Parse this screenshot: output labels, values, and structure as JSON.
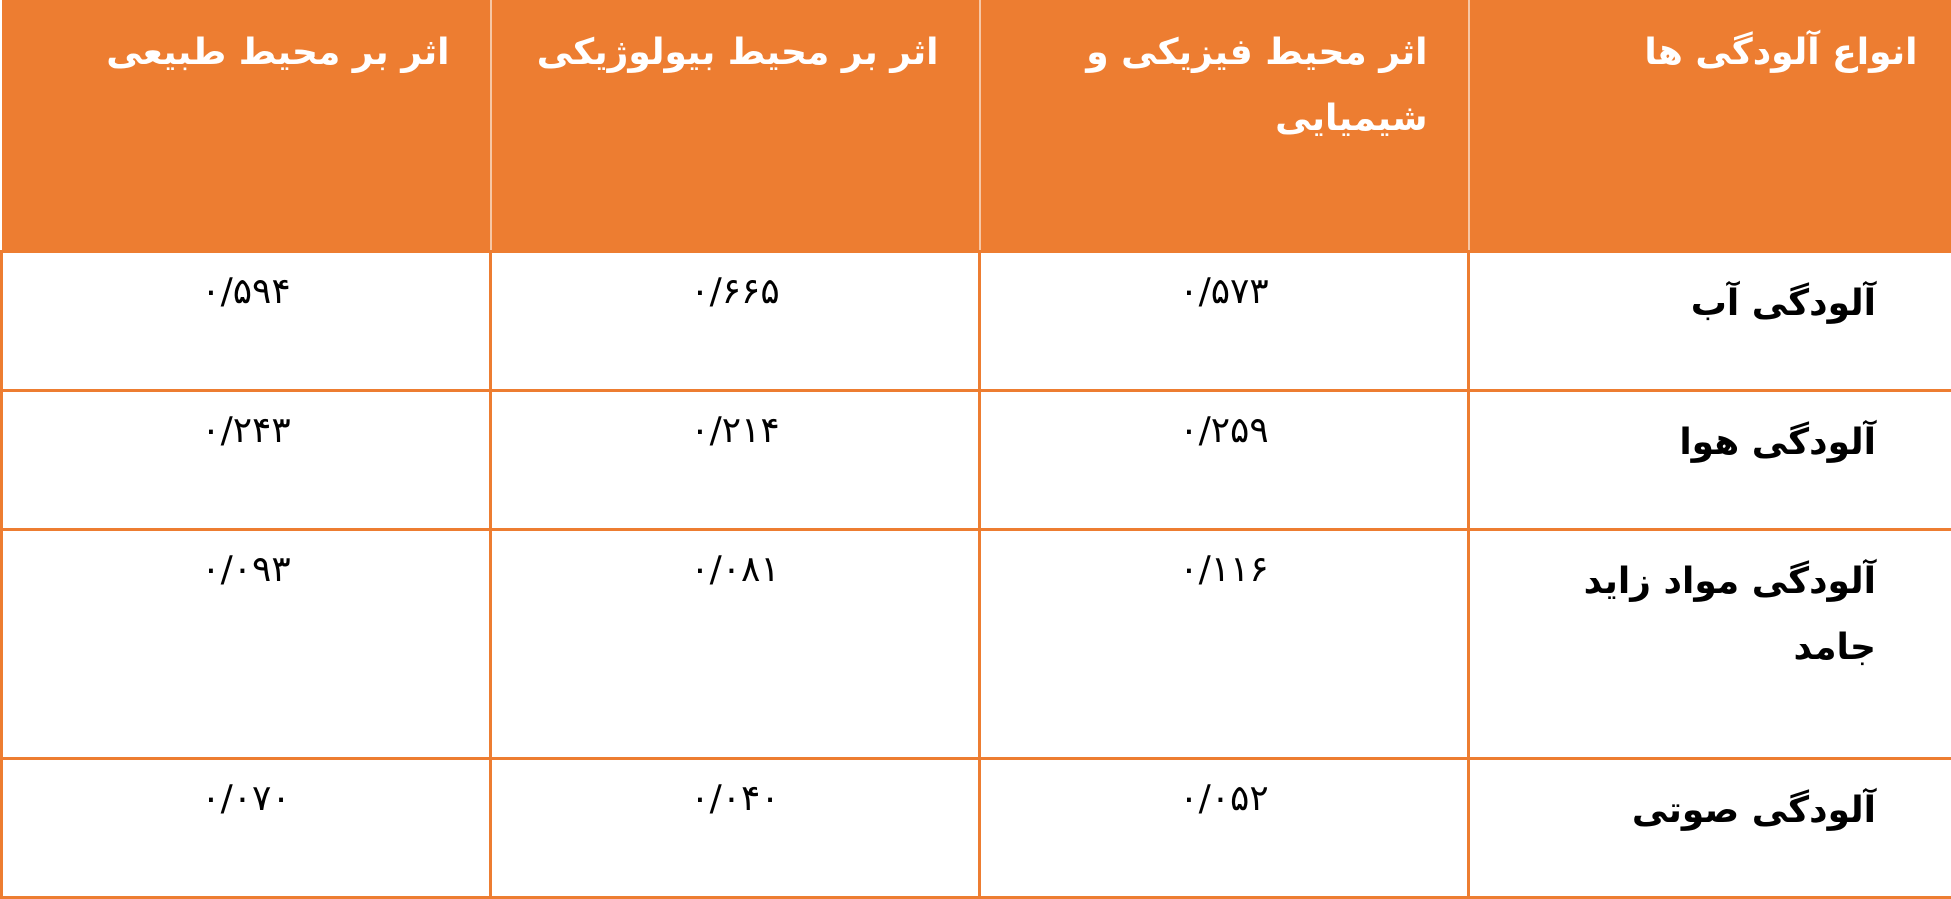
{
  "table": {
    "headers": [
      "انواع آلودگی ها",
      "اثر محیط فیزیکی و شیمیایی",
      "اثر بر محیط بیولوژیکی",
      "اثر بر محیط طبیعی"
    ],
    "rows": [
      {
        "type": "آلودگی آب",
        "physical_chemical": "۰/۵۷۳",
        "biological": "۰/۶۶۵",
        "natural": "۰/۵۹۴"
      },
      {
        "type": "آلودگی هوا",
        "physical_chemical": "۰/۲۵۹",
        "biological": "۰/۲۱۴",
        "natural": "۰/۲۴۳"
      },
      {
        "type": "آلودگی مواد زاید جامد",
        "physical_chemical": "۰/۱۱۶",
        "biological": "۰/۰۸۱",
        "natural": "۰/۰۹۳"
      },
      {
        "type": "آلودگی صوتی",
        "physical_chemical": "۰/۰۵۲",
        "biological": "۰/۰۴۰",
        "natural": "۰/۰۷۰"
      }
    ],
    "colors": {
      "header_bg": "#ED7D31",
      "border": "#ED7D31",
      "header_text": "#FFFFFF"
    }
  }
}
